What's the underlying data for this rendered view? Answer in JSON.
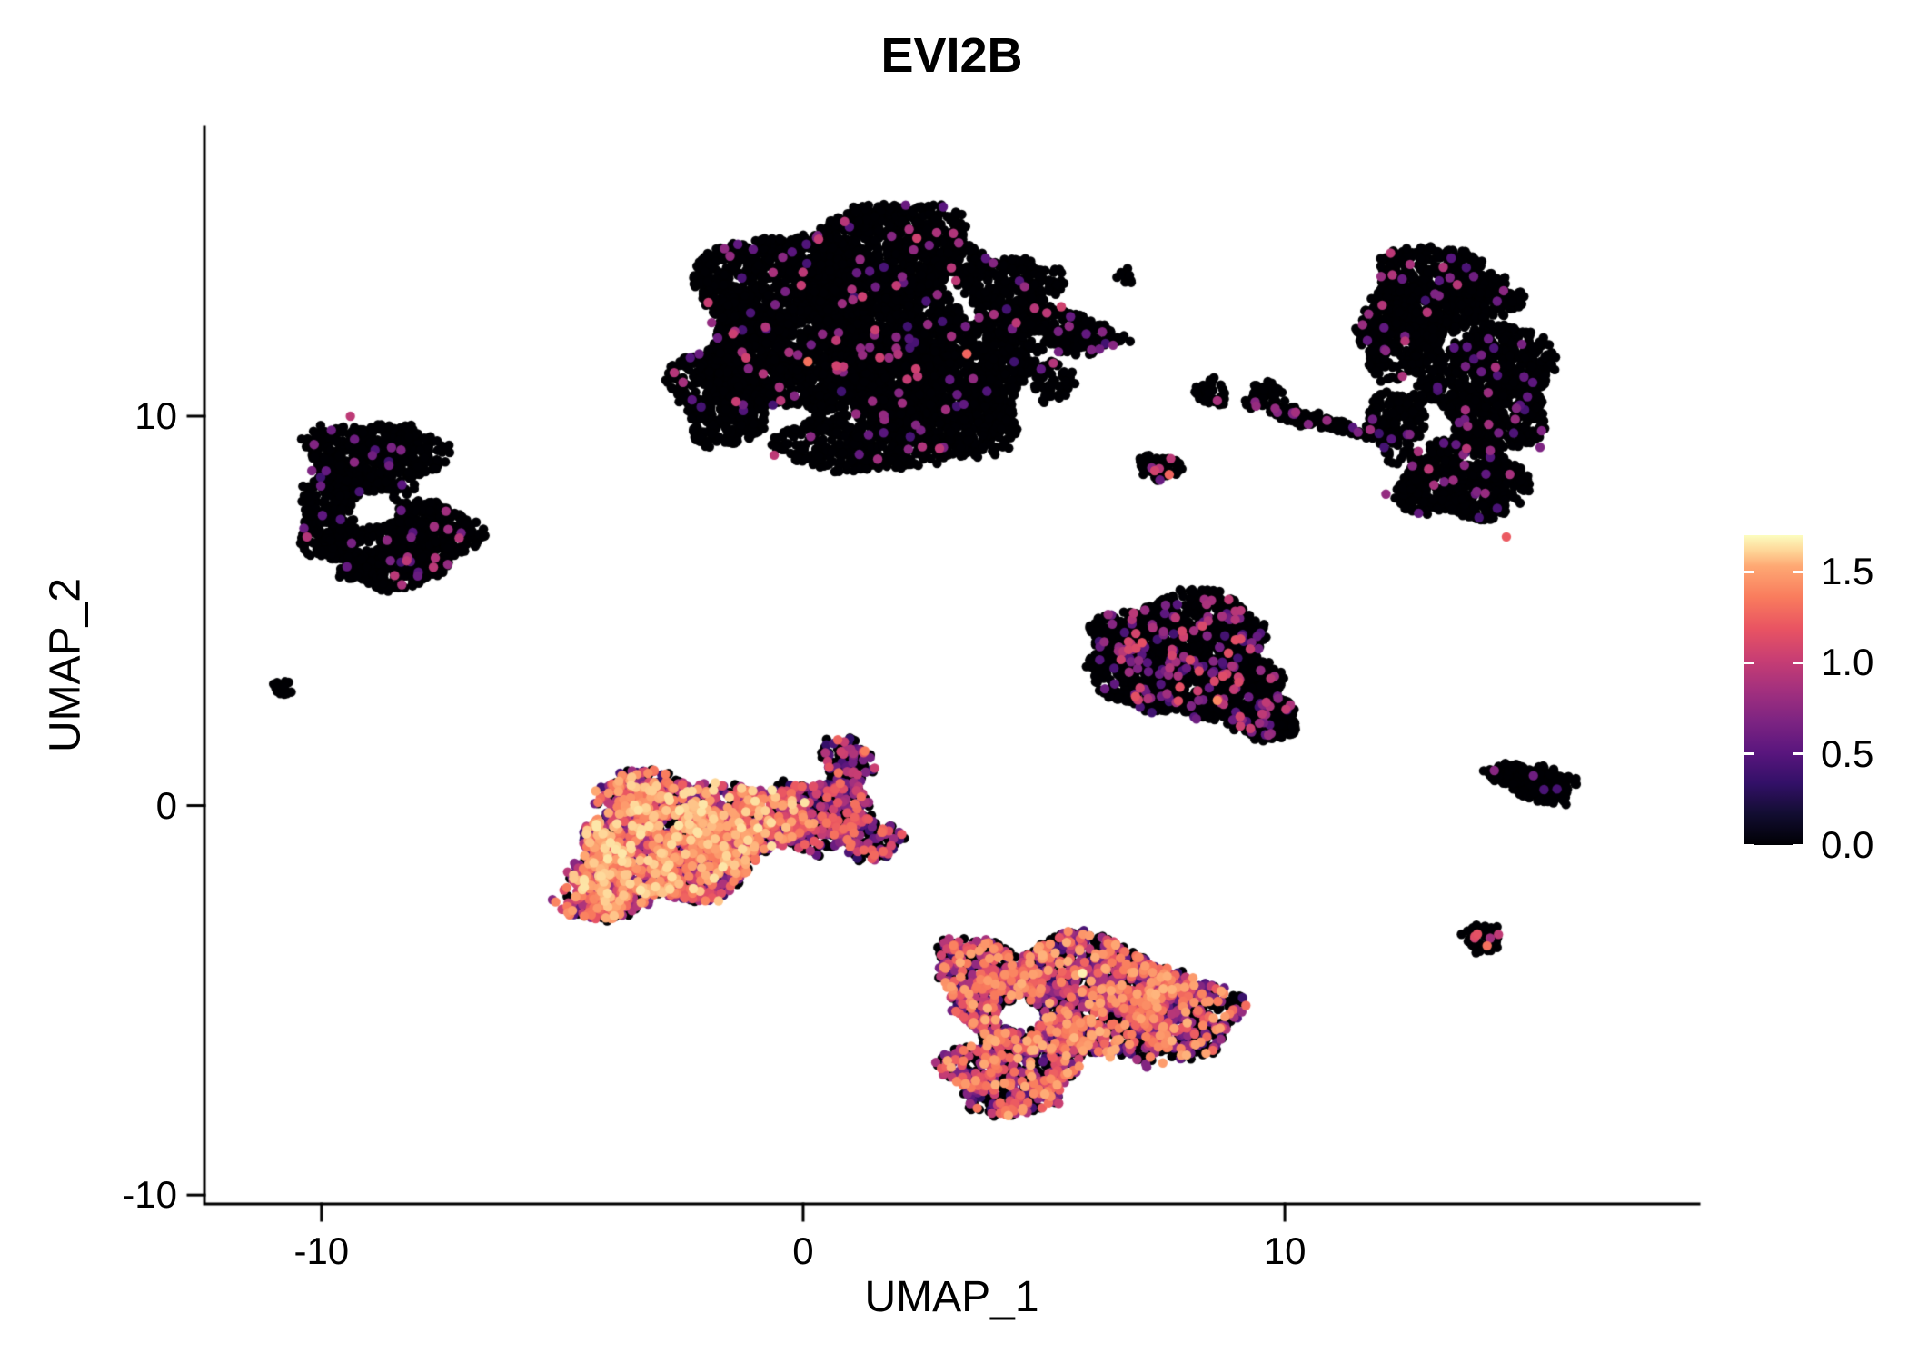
{
  "chart_data": {
    "type": "scatter",
    "title": "EVI2B",
    "xlabel": "UMAP_1",
    "ylabel": "UMAP_2",
    "xlim": [
      -12.43,
      18.6
    ],
    "ylim": [
      -10.23,
      17.42
    ],
    "x_ticks": [
      -10,
      0,
      10
    ],
    "x_tick_labels": [
      "-10",
      "0",
      "10"
    ],
    "y_ticks": [
      -10,
      0,
      10
    ],
    "y_tick_labels": [
      "-10",
      "0",
      "10"
    ],
    "grid": false,
    "axis_color": "#000000",
    "background_color": "#ffffff",
    "zero_expression_color": "#000004",
    "legend": {
      "position": "right",
      "vmin": 0.0,
      "vmax": 1.7,
      "color_scale_max": 1.75,
      "tick_values": [
        0.0,
        0.5,
        1.0,
        1.5
      ],
      "tick_labels": [
        "0.0",
        "0.5",
        "1.0",
        "1.5"
      ],
      "colormap": "magma",
      "colormap_stops": [
        {
          "t": 0.0,
          "color": "#000004"
        },
        {
          "t": 0.1,
          "color": "#120d31"
        },
        {
          "t": 0.2,
          "color": "#331068"
        },
        {
          "t": 0.3,
          "color": "#5a167e"
        },
        {
          "t": 0.4,
          "color": "#7d2482"
        },
        {
          "t": 0.5,
          "color": "#a3307e"
        },
        {
          "t": 0.6,
          "color": "#c83e73"
        },
        {
          "t": 0.7,
          "color": "#e95462"
        },
        {
          "t": 0.8,
          "color": "#f97c5d"
        },
        {
          "t": 0.9,
          "color": "#fea873"
        },
        {
          "t": 0.95,
          "color": "#fed698"
        },
        {
          "t": 1.0,
          "color": "#fcfdbf"
        }
      ]
    },
    "clusters": [
      {
        "name": "top-center-large",
        "expression": {
          "zero_frac": 0.975,
          "min": 0.4,
          "max": 1.1,
          "skew": 1.3
        },
        "blobs": [
          {
            "cx": 0.2,
            "cy": 12.5,
            "rx": 2.5,
            "ry": 2.2,
            "n": 2600
          },
          {
            "cx": 2.8,
            "cy": 10.8,
            "rx": 2.0,
            "ry": 1.8,
            "n": 1700
          },
          {
            "cx": 1.8,
            "cy": 14.3,
            "rx": 2.0,
            "ry": 1.1,
            "n": 800
          },
          {
            "cx": 5.4,
            "cy": 12.2,
            "rx": 1.2,
            "ry": 0.55,
            "rot": -15,
            "n": 280
          },
          {
            "cx": -1.6,
            "cy": 10.6,
            "rx": 1.1,
            "ry": 1.3,
            "n": 450
          },
          {
            "cx": 4.3,
            "cy": 13.2,
            "rx": 1.0,
            "ry": 0.9,
            "n": 320
          },
          {
            "cx": 1.2,
            "cy": 9.5,
            "rx": 1.6,
            "ry": 1.0,
            "n": 500
          },
          {
            "cx": 5.2,
            "cy": 10.9,
            "rx": 0.5,
            "ry": 0.5,
            "n": 60
          },
          {
            "cx": 6.7,
            "cy": 13.6,
            "rx": 0.2,
            "ry": 0.2,
            "n": 12
          }
        ],
        "specials": [
          {
            "x": 0.1,
            "y": 11.4,
            "value": 1.35
          },
          {
            "x": 3.4,
            "y": 11.6,
            "value": 1.3
          },
          {
            "x": -0.6,
            "y": 9.0,
            "value": 1.0
          },
          {
            "x": 2.2,
            "y": 14.8,
            "value": 0.9
          },
          {
            "x": -1.9,
            "y": 12.4,
            "value": 0.8
          }
        ]
      },
      {
        "name": "left-ring",
        "expression": {
          "zero_frac": 0.97,
          "min": 0.4,
          "max": 1.0,
          "skew": 1.0
        },
        "blobs": [
          {
            "cx": -8.9,
            "cy": 8.9,
            "rx": 1.4,
            "ry": 1.0,
            "n": 550
          },
          {
            "cx": -9.7,
            "cy": 7.4,
            "rx": 0.8,
            "ry": 1.1,
            "n": 350
          },
          {
            "cx": -7.9,
            "cy": 6.9,
            "rx": 1.1,
            "ry": 1.0,
            "n": 430
          },
          {
            "cx": -8.6,
            "cy": 6.1,
            "rx": 1.0,
            "ry": 0.55,
            "n": 220
          }
        ],
        "holes": [
          {
            "cx": -8.9,
            "cy": 7.6,
            "rx": 0.5,
            "ry": 0.45
          }
        ],
        "specials": [
          {
            "x": -9.4,
            "y": 10.0,
            "value": 1.0
          },
          {
            "x": -10.2,
            "y": 8.6,
            "value": 0.7
          },
          {
            "x": -10.3,
            "y": 6.9,
            "value": 0.95
          },
          {
            "x": -8.0,
            "y": 5.9,
            "value": 0.6
          },
          {
            "x": -7.1,
            "y": 7.0,
            "value": 0.65
          }
        ]
      },
      {
        "name": "tiny-left-dot",
        "expression": {
          "zero_frac": 1.0,
          "min": 0,
          "max": 0,
          "skew": 1
        },
        "blobs": [
          {
            "cx": -10.8,
            "cy": 3.0,
            "rx": 0.18,
            "ry": 0.3,
            "n": 16
          }
        ]
      },
      {
        "name": "mid-left-high-expression",
        "expression": {
          "zero_frac": 0.28,
          "min": 0.3,
          "max": 1.7,
          "skew": 0.8
        },
        "blobs": [
          {
            "cx": -2.9,
            "cy": -1.1,
            "rx": 1.8,
            "ry": 1.5,
            "n": 1500
          },
          {
            "cx": -1.2,
            "cy": -0.4,
            "rx": 1.3,
            "ry": 1.0,
            "n": 520
          },
          {
            "cx": -4.2,
            "cy": -2.2,
            "rx": 0.9,
            "ry": 0.8,
            "n": 300
          },
          {
            "cx": -3.4,
            "cy": 0.3,
            "rx": 0.8,
            "ry": 0.6,
            "n": 220
          }
        ],
        "specials": [
          {
            "x": -3.1,
            "y": -1.5,
            "value": 1.65
          },
          {
            "x": -2.2,
            "y": -0.3,
            "value": 1.6
          }
        ]
      },
      {
        "name": "mid-left-right-lobe",
        "expression": {
          "zero_frac": 0.58,
          "min": 0.3,
          "max": 1.4,
          "skew": 0.9
        },
        "blobs": [
          {
            "cx": 0.3,
            "cy": -0.2,
            "rx": 1.1,
            "ry": 0.9,
            "n": 420
          },
          {
            "cx": 0.9,
            "cy": 1.0,
            "rx": 0.5,
            "ry": 0.8,
            "n": 130
          },
          {
            "cx": 1.4,
            "cy": -0.9,
            "rx": 0.6,
            "ry": 0.5,
            "n": 140
          }
        ]
      },
      {
        "name": "bottom-center-mixed",
        "expression": {
          "zero_frac": 0.44,
          "min": 0.3,
          "max": 1.6,
          "skew": 0.9
        },
        "blobs": [
          {
            "cx": 5.6,
            "cy": -5.0,
            "rx": 2.3,
            "ry": 1.5,
            "n": 1700
          },
          {
            "cx": 4.3,
            "cy": -6.9,
            "rx": 1.4,
            "ry": 1.0,
            "n": 550
          },
          {
            "cx": 7.8,
            "cy": -5.4,
            "rx": 1.2,
            "ry": 1.2,
            "n": 450
          },
          {
            "cx": 3.6,
            "cy": -4.1,
            "rx": 0.9,
            "ry": 0.7,
            "n": 250
          }
        ],
        "holes": [
          {
            "cx": 4.5,
            "cy": -5.4,
            "rx": 0.5,
            "ry": 0.4
          }
        ],
        "specials": [
          {
            "x": 5.8,
            "y": -4.3,
            "value": 1.72
          }
        ]
      },
      {
        "name": "mid-right-triangle",
        "expression": {
          "zero_frac": 0.9,
          "min": 0.4,
          "max": 1.2,
          "skew": 1.1
        },
        "blobs": [
          {
            "cx": 7.9,
            "cy": 4.4,
            "rx": 1.8,
            "ry": 1.0,
            "n": 800
          },
          {
            "cx": 8.8,
            "cy": 3.0,
            "rx": 1.3,
            "ry": 0.9,
            "n": 500
          },
          {
            "cx": 9.6,
            "cy": 2.2,
            "rx": 0.7,
            "ry": 0.5,
            "n": 180
          },
          {
            "cx": 7.0,
            "cy": 3.4,
            "rx": 1.0,
            "ry": 0.9,
            "n": 350
          }
        ],
        "specials": [
          {
            "x": 8.6,
            "y": 2.7,
            "value": 1.45
          },
          {
            "x": 6.9,
            "y": 2.8,
            "value": 1.2
          }
        ]
      },
      {
        "name": "small-cluster-mid",
        "expression": {
          "zero_frac": 0.94,
          "min": 0.5,
          "max": 1.0,
          "skew": 1
        },
        "blobs": [
          {
            "cx": 7.4,
            "cy": 8.7,
            "rx": 0.45,
            "ry": 0.3,
            "n": 55
          }
        ],
        "specials": [
          {
            "x": 7.6,
            "y": 8.5,
            "value": 1.3
          },
          {
            "x": 7.3,
            "y": 8.6,
            "value": 1.1
          }
        ]
      },
      {
        "name": "small-cluster-upper",
        "expression": {
          "zero_frac": 0.96,
          "min": 0.5,
          "max": 0.9,
          "skew": 1
        },
        "blobs": [
          {
            "cx": 8.45,
            "cy": 10.6,
            "rx": 0.35,
            "ry": 0.3,
            "n": 45
          }
        ],
        "specials": [
          {
            "x": 8.6,
            "y": 10.4,
            "value": 0.9
          }
        ]
      },
      {
        "name": "small-streak",
        "expression": {
          "zero_frac": 0.96,
          "min": 0.5,
          "max": 0.9,
          "skew": 1
        },
        "blobs": [
          {
            "cx": 10.6,
            "cy": 9.9,
            "rx": 1.05,
            "ry": 0.18,
            "rot": -18,
            "n": 140
          }
        ],
        "specials": [
          {
            "x": 9.8,
            "y": 10.2,
            "value": 0.8
          }
        ]
      },
      {
        "name": "small-cluster-purple",
        "expression": {
          "zero_frac": 0.88,
          "min": 0.5,
          "max": 0.9,
          "skew": 1
        },
        "blobs": [
          {
            "cx": 9.6,
            "cy": 10.5,
            "rx": 0.4,
            "ry": 0.35,
            "n": 50
          }
        ]
      },
      {
        "name": "right-crescent",
        "expression": {
          "zero_frac": 0.97,
          "min": 0.4,
          "max": 1.0,
          "skew": 1.1
        },
        "blobs": [
          {
            "cx": 13.2,
            "cy": 13.2,
            "rx": 1.5,
            "ry": 1.1,
            "n": 700
          },
          {
            "cx": 14.3,
            "cy": 10.8,
            "rx": 1.3,
            "ry": 1.6,
            "n": 850
          },
          {
            "cx": 13.7,
            "cy": 8.4,
            "rx": 1.3,
            "ry": 1.1,
            "n": 600
          },
          {
            "cx": 12.4,
            "cy": 12.0,
            "rx": 0.9,
            "ry": 1.0,
            "n": 350
          },
          {
            "cx": 12.3,
            "cy": 9.8,
            "rx": 0.6,
            "ry": 0.9,
            "n": 200
          }
        ],
        "specials": [
          {
            "x": 12.6,
            "y": 13.9,
            "value": 0.9
          },
          {
            "x": 14.6,
            "y": 6.9,
            "value": 1.25
          },
          {
            "x": 12.1,
            "y": 8.0,
            "value": 0.8
          },
          {
            "x": 15.3,
            "y": 9.2,
            "value": 0.7
          }
        ]
      },
      {
        "name": "right-small-elongated",
        "expression": {
          "zero_frac": 0.985,
          "min": 0.4,
          "max": 0.8,
          "skew": 1
        },
        "blobs": [
          {
            "cx": 15.3,
            "cy": 0.55,
            "rx": 0.75,
            "ry": 0.45,
            "rot": -12,
            "n": 170
          },
          {
            "cx": 14.6,
            "cy": 0.85,
            "rx": 0.4,
            "ry": 0.25,
            "n": 60
          }
        ],
        "specials": [
          {
            "x": 14.35,
            "y": 0.9,
            "value": 0.75
          }
        ]
      },
      {
        "name": "tiny-bottom-right",
        "expression": {
          "zero_frac": 0.8,
          "min": 0.6,
          "max": 1.2,
          "skew": 1
        },
        "blobs": [
          {
            "cx": 14.1,
            "cy": -3.4,
            "rx": 0.38,
            "ry": 0.38,
            "n": 45
          }
        ],
        "specials": [
          {
            "x": 14.0,
            "y": -3.3,
            "value": 1.2
          },
          {
            "x": 14.2,
            "y": -3.6,
            "value": 1.35
          }
        ]
      }
    ]
  }
}
